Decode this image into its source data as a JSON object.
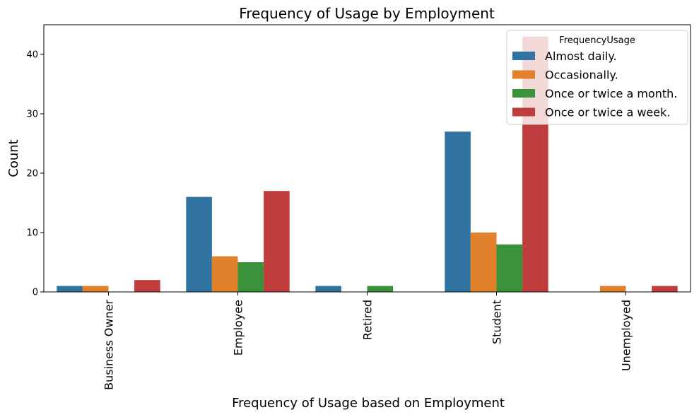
{
  "chart_data": {
    "type": "bar",
    "title": "Frequency of Usage by Employment",
    "xlabel": "Frequency of Usage based on Employment",
    "ylabel": "Count",
    "categories": [
      "Business Owner",
      "Employee",
      "Retired",
      "Student",
      "Unemployed"
    ],
    "ylim": [
      0,
      45
    ],
    "yticks": [
      0,
      10,
      20,
      30,
      40
    ],
    "grid": false,
    "legend": {
      "title": "FrequencyUsage",
      "placement": "top-right"
    },
    "series": [
      {
        "name": "Almost daily.",
        "color": "#3274a1",
        "values": [
          1,
          16,
          1,
          27,
          0
        ]
      },
      {
        "name": "Occasionally.",
        "color": "#e1812c",
        "values": [
          1,
          6,
          0,
          10,
          1
        ]
      },
      {
        "name": "Once or twice a month.",
        "color": "#3a923a",
        "values": [
          0,
          5,
          1,
          8,
          0
        ]
      },
      {
        "name": "Once or twice a week.",
        "color": "#c03d3e",
        "values": [
          2,
          17,
          0,
          43,
          1
        ]
      }
    ]
  }
}
